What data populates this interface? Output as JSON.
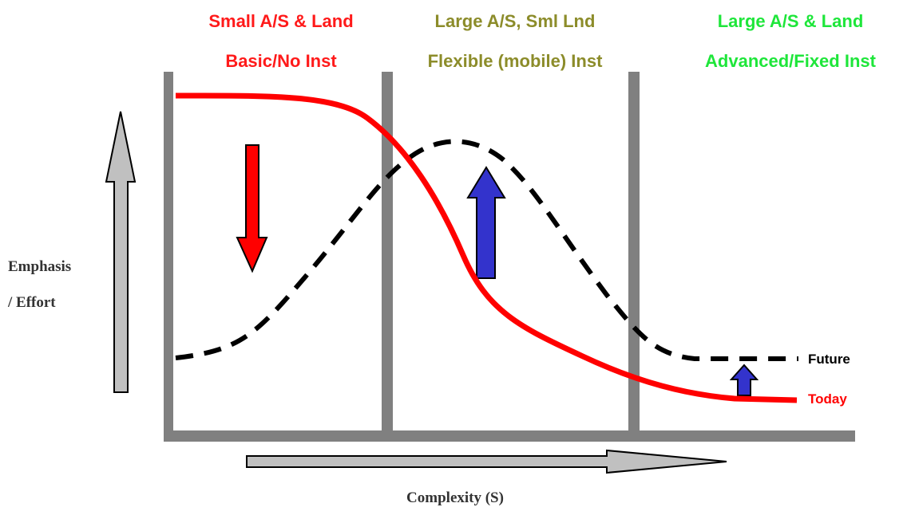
{
  "zones": [
    {
      "title": "Small A/S & Land",
      "subtitle": "Basic/No Inst",
      "color": "#ff1a1a"
    },
    {
      "title": "Large A/S, Sml Lnd",
      "subtitle": "Flexible (mobile) Inst",
      "color": "#8c8c2a"
    },
    {
      "title": "Large A/S & Land",
      "subtitle": "Advanced/Fixed Inst",
      "color": "#1ee63a"
    }
  ],
  "y_axis": {
    "line1": "Emphasis",
    "line2": "/ Effort"
  },
  "x_axis": {
    "label": "Complexity (S)"
  },
  "curves": {
    "future": {
      "label": "Future",
      "color": "#000000",
      "style": "dashed"
    },
    "today": {
      "label": "Today",
      "color": "#ff0000",
      "style": "solid"
    }
  },
  "colors": {
    "frame": "#808080",
    "arrow_gray": "#c0c0c0",
    "arrow_red": "#ff0000",
    "arrow_blue": "#3333cc"
  }
}
